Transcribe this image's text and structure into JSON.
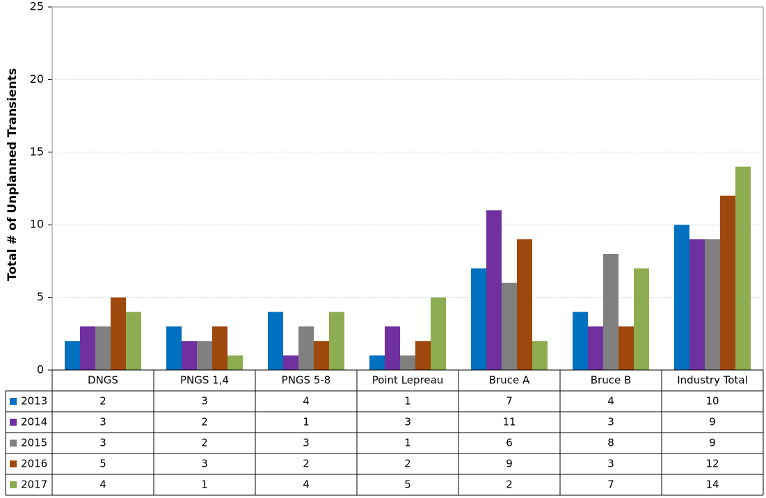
{
  "chart_data": {
    "type": "bar",
    "y_label": "Total # of Unplanned Transients",
    "categories": [
      "DNGS",
      "PNGS 1,4",
      "PNGS 5-8",
      "Point Lepreau",
      "Bruce A",
      "Bruce B",
      "Industry Total"
    ],
    "series": [
      {
        "name": "2013",
        "color": "#0070c0",
        "values": [
          2,
          3,
          4,
          1,
          7,
          4,
          10
        ]
      },
      {
        "name": "2014",
        "color": "#7030a0",
        "values": [
          3,
          2,
          1,
          3,
          11,
          3,
          9
        ]
      },
      {
        "name": "2015",
        "color": "#808080",
        "values": [
          3,
          2,
          3,
          1,
          6,
          8,
          9
        ]
      },
      {
        "name": "2016",
        "color": "#9e480e",
        "values": [
          5,
          3,
          2,
          2,
          9,
          3,
          12
        ]
      },
      {
        "name": "2017",
        "color": "#8eac50",
        "values": [
          4,
          1,
          4,
          5,
          2,
          7,
          14
        ]
      }
    ],
    "ylim": [
      0,
      25
    ],
    "yticks": [
      0,
      5,
      10,
      15,
      20,
      25
    ],
    "grid": true
  }
}
